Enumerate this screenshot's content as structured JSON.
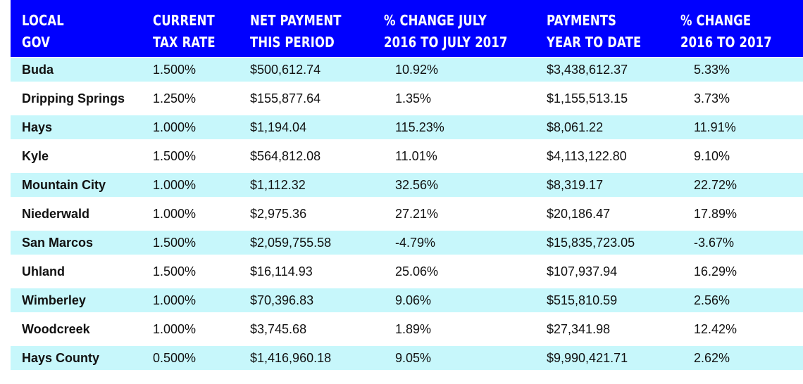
{
  "chart_data": {
    "type": "table",
    "columns": [
      [
        "LOCAL",
        "GOV"
      ],
      [
        "CURRENT",
        "TAX RATE"
      ],
      [
        "NET PAYMENT",
        "THIS PERIOD"
      ],
      [
        "% CHANGE JULY",
        "2016 TO JULY 2017"
      ],
      [
        "PAYMENTS",
        "YEAR TO DATE"
      ],
      [
        "% CHANGE",
        "2016 TO 2017"
      ]
    ],
    "rows": [
      [
        "Buda",
        "1.500%",
        "$500,612.74",
        "10.92%",
        "$3,438,612.37",
        "5.33%"
      ],
      [
        "Dripping Springs",
        "1.250%",
        "$155,877.64",
        "1.35%",
        "$1,155,513.15",
        "3.73%"
      ],
      [
        "Hays",
        "1.000%",
        "$1,194.04",
        "115.23%",
        "$8,061.22",
        "11.91%"
      ],
      [
        "Kyle",
        "1.500%",
        "$564,812.08",
        "11.01%",
        "$4,113,122.80",
        "9.10%"
      ],
      [
        "Mountain City",
        "1.000%",
        "$1,112.32",
        "32.56%",
        "$8,319.17",
        "22.72%"
      ],
      [
        "Niederwald",
        "1.000%",
        "$2,975.36",
        "27.21%",
        "$20,186.47",
        "17.89%"
      ],
      [
        "San Marcos",
        "1.500%",
        "$2,059,755.58",
        "-4.79%",
        "$15,835,723.05",
        "-3.67%"
      ],
      [
        "Uhland",
        "1.500%",
        "$16,114.93",
        "25.06%",
        "$107,937.94",
        "16.29%"
      ],
      [
        "Wimberley",
        "1.000%",
        "$70,396.83",
        "9.06%",
        "$515,810.59",
        "2.56%"
      ],
      [
        "Woodcreek",
        "1.000%",
        "$3,745.68",
        "1.89%",
        "$27,341.98",
        "12.42%"
      ],
      [
        "Hays County",
        "0.500%",
        "$1,416,960.18",
        "9.05%",
        "$9,990,421.71",
        "2.62%"
      ]
    ]
  },
  "colors": {
    "header_bg": "#0000ff",
    "header_text": "#ffffff",
    "row_shade": "#c7f7fb",
    "row_plain": "#ffffff"
  }
}
